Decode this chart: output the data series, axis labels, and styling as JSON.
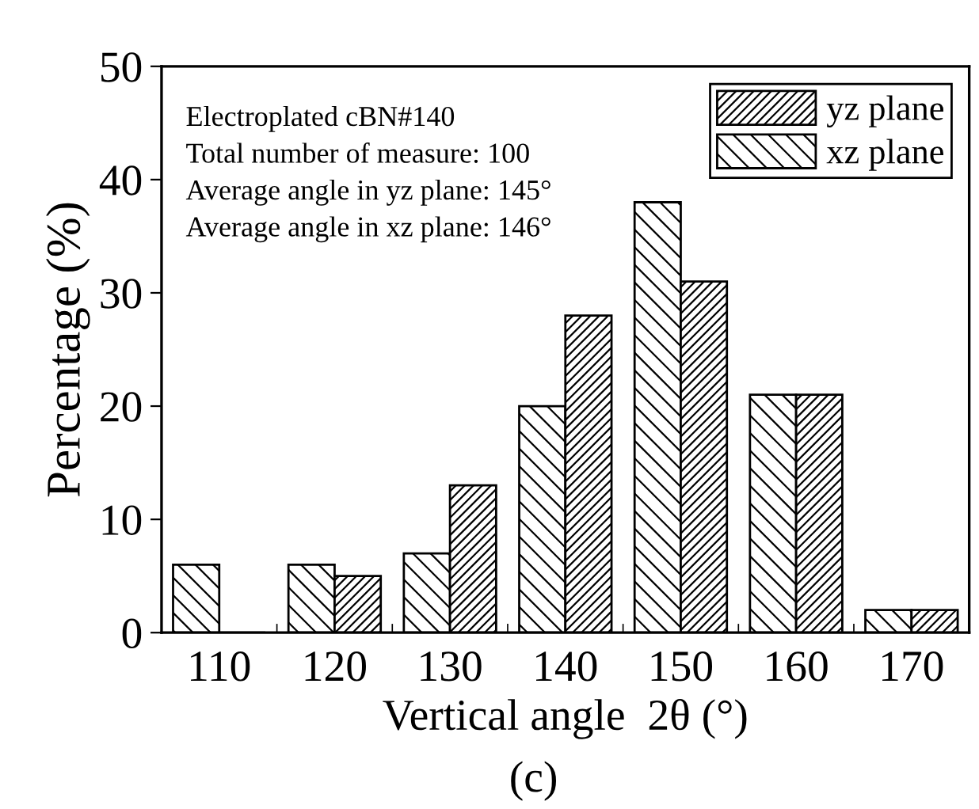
{
  "chart_data": {
    "type": "bar",
    "xlabel": "Vertical angle  2θ (°)",
    "ylabel": "Percentage (%)",
    "categories": [
      "110",
      "120",
      "130",
      "140",
      "150",
      "160",
      "170"
    ],
    "series": [
      {
        "name": "xz plane",
        "color": "#000000",
        "values": [
          6,
          6,
          7,
          20,
          38,
          21,
          2
        ]
      },
      {
        "name": "yz plane",
        "color": "#000000",
        "values": [
          0,
          5,
          13,
          28,
          31,
          21,
          2
        ]
      }
    ],
    "ylim": [
      0,
      50
    ],
    "yticks": [
      0,
      10,
      20,
      30,
      40,
      50
    ],
    "grid": false,
    "legend": "top right",
    "annotations": [
      "Electroplated cBN#140",
      "Total number of measure: 100",
      "Average angle in yz plane: 145°",
      "Average angle in xz plane: 146°",
      "(c)"
    ]
  }
}
